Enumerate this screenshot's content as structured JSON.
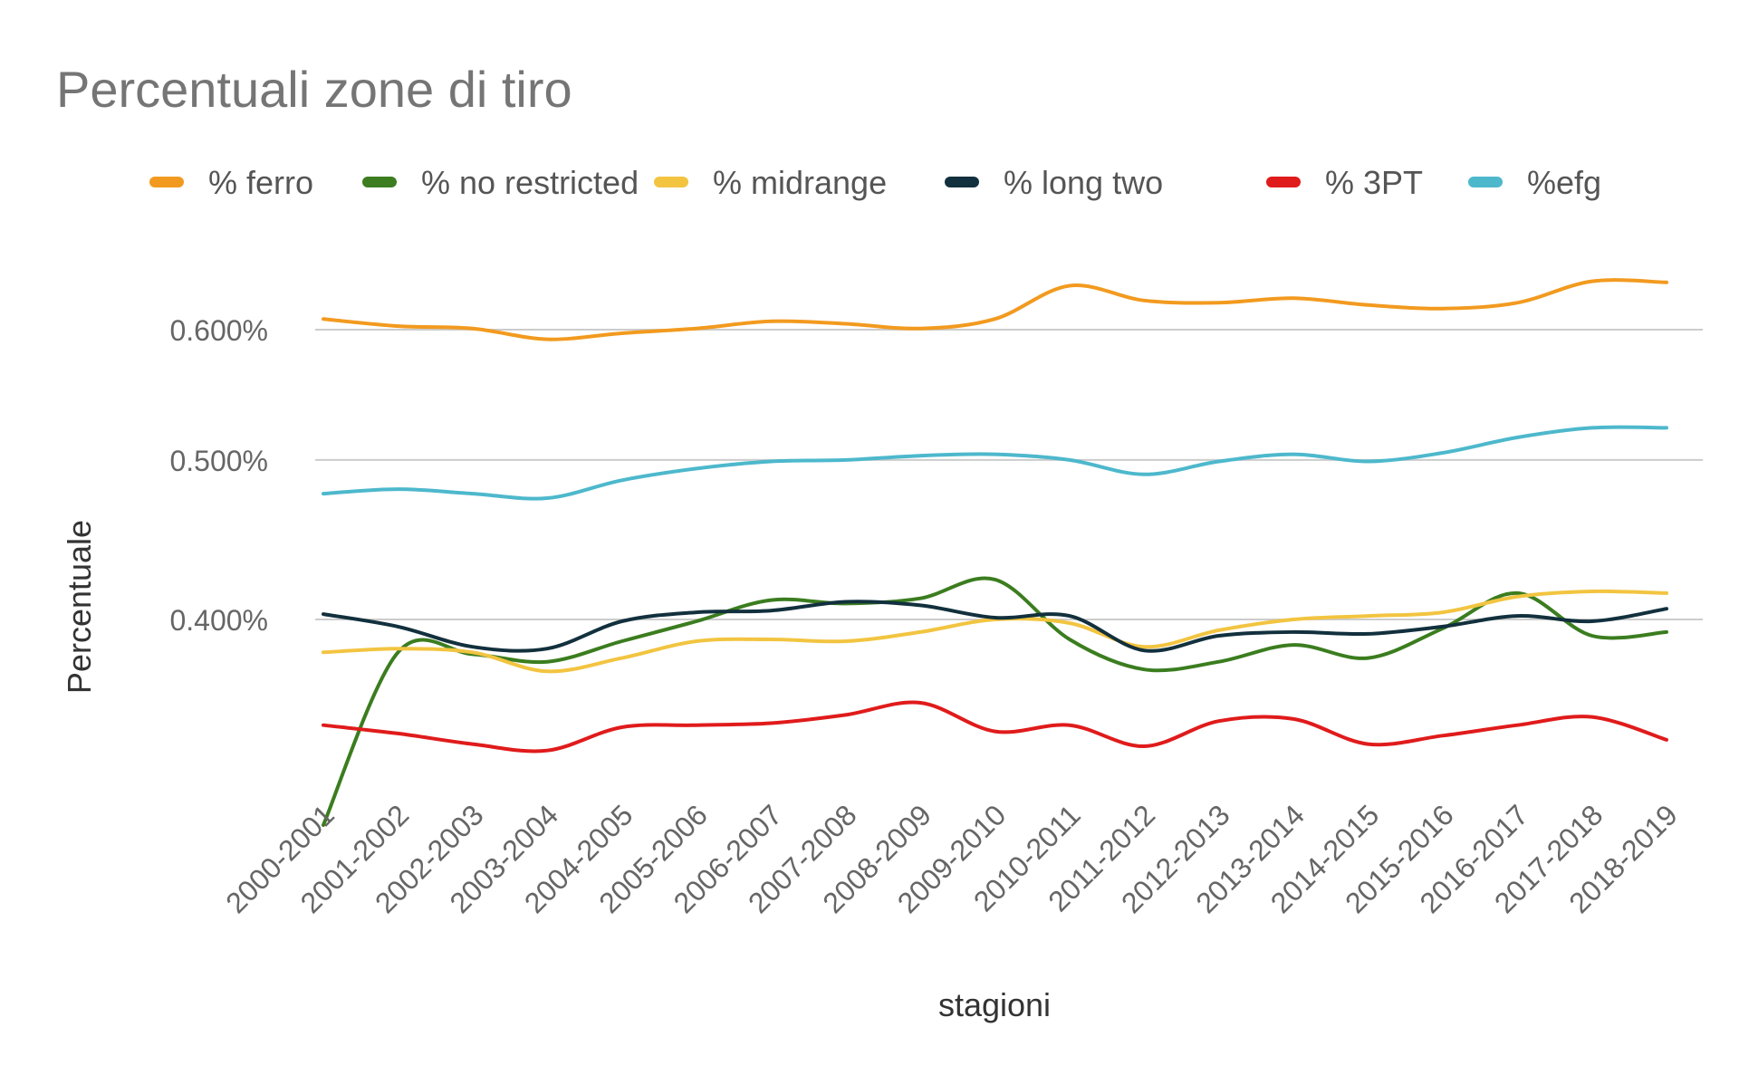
{
  "chart_data": {
    "type": "line",
    "title": "Percentuali zone di tiro",
    "xlabel": "stagioni",
    "ylabel": "Percentuale",
    "categories": [
      "2000-2001",
      "2001-2002",
      "2002-2003",
      "2003-2004",
      "2004-2005",
      "2005-2006",
      "2006-2007",
      "2007-2008",
      "2008-2009",
      "2009-2010",
      "2010-2011",
      "2011-2012",
      "2012-2013",
      "2013-2014",
      "2014-2015",
      "2015-2016",
      "2016-2017",
      "2017-2018",
      "2018-2019"
    ],
    "y_ticks": [
      {
        "value": 0.4,
        "label": "0.400%"
      },
      {
        "value": 0.5,
        "label": "0.500%"
      },
      {
        "value": 0.6,
        "label": "0.600%"
      }
    ],
    "ylim": [
      0.28,
      0.66
    ],
    "y_scale": "log",
    "grid": true,
    "legend_position": "top",
    "series": [
      {
        "name": "% ferro",
        "color": "#f29a1f",
        "values": [
          0.609,
          0.603,
          0.601,
          0.592,
          0.597,
          0.601,
          0.607,
          0.605,
          0.601,
          0.609,
          0.638,
          0.625,
          0.623,
          0.627,
          0.621,
          0.618,
          0.623,
          0.642,
          0.641
        ]
      },
      {
        "name": "% no restricted",
        "color": "#3b7d1f",
        "values": [
          0.3,
          0.382,
          0.381,
          0.377,
          0.388,
          0.399,
          0.411,
          0.409,
          0.412,
          0.423,
          0.389,
          0.373,
          0.377,
          0.386,
          0.379,
          0.395,
          0.415,
          0.391,
          0.393
        ]
      },
      {
        "name": "% midrange",
        "color": "#f2c440",
        "values": [
          0.382,
          0.384,
          0.382,
          0.372,
          0.379,
          0.388,
          0.389,
          0.388,
          0.393,
          0.4,
          0.398,
          0.385,
          0.394,
          0.4,
          0.402,
          0.404,
          0.413,
          0.416,
          0.415
        ]
      },
      {
        "name": "% long two",
        "color": "#12303d",
        "values": [
          0.403,
          0.396,
          0.385,
          0.384,
          0.399,
          0.404,
          0.405,
          0.41,
          0.408,
          0.401,
          0.402,
          0.383,
          0.391,
          0.393,
          0.392,
          0.396,
          0.402,
          0.399,
          0.406
        ]
      },
      {
        "name": "% 3PT",
        "color": "#e01b1b",
        "values": [
          0.345,
          0.341,
          0.336,
          0.333,
          0.344,
          0.345,
          0.346,
          0.35,
          0.356,
          0.342,
          0.345,
          0.335,
          0.347,
          0.348,
          0.336,
          0.34,
          0.345,
          0.349,
          0.338
        ]
      },
      {
        "name": "%efg",
        "color": "#4db8cc",
        "values": [
          0.477,
          0.48,
          0.477,
          0.474,
          0.486,
          0.494,
          0.499,
          0.5,
          0.503,
          0.504,
          0.5,
          0.49,
          0.499,
          0.504,
          0.499,
          0.505,
          0.516,
          0.523,
          0.523
        ]
      }
    ]
  }
}
